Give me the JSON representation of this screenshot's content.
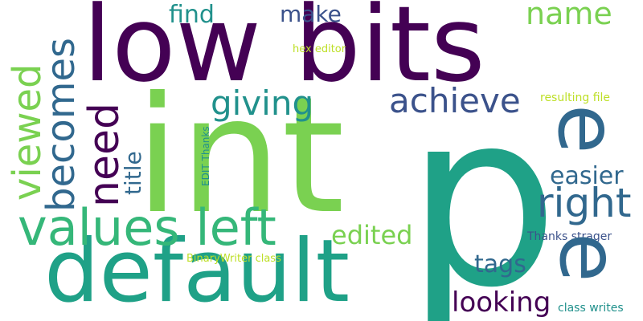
{
  "palette": {
    "dark_purple": "#440154",
    "indigo": "#3b528b",
    "teal_blue": "#31688e",
    "teal": "#21918c",
    "sea_green": "#1fa187",
    "green": "#35b779",
    "lime": "#7ad151",
    "yellow_green": "#bddf26"
  },
  "words": {
    "low_bits": "low bits",
    "int": "int",
    "p": "p",
    "default": "default",
    "values_left": "values left",
    "viewed": "viewed",
    "becomes": "becomes",
    "need": "need",
    "giving": "giving",
    "achieve": "achieve",
    "right": "right",
    "easier": "easier",
    "name": "name",
    "find": "find",
    "make": "make",
    "title": "title",
    "edited": "edited",
    "tags": "tags",
    "looking": "looking",
    "e": "e",
    "hex_editor": "hex editor",
    "resulting_file": "resulting file",
    "edit_thanks": "EDIT Thanks",
    "thanks_strager": "Thanks strager",
    "binarywriter_class": "BinaryWriter class",
    "class_writes": "class writes"
  }
}
